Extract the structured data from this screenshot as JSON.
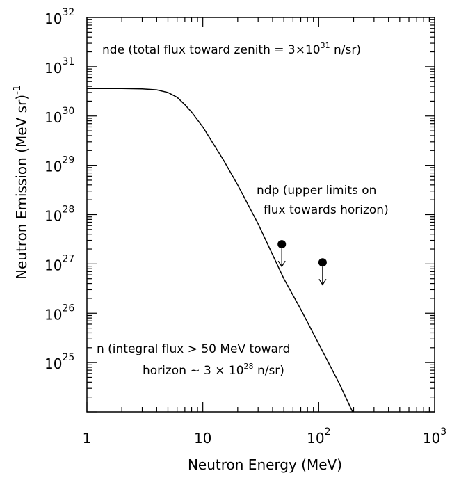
{
  "chart_data": {
    "type": "line",
    "x_scale": "log",
    "y_scale": "log",
    "xlim": [
      1,
      1000
    ],
    "ylim": [
      1e+24,
      1e+32
    ],
    "x_ticks": [
      {
        "value": 1,
        "label": "1"
      },
      {
        "value": 10,
        "label": "10"
      },
      {
        "value": 100,
        "base": "10",
        "exp": "2"
      },
      {
        "value": 1000,
        "base": "10",
        "exp": "3"
      }
    ],
    "y_ticks": [
      {
        "value": 1e+25,
        "base": "10",
        "exp": "25"
      },
      {
        "value": 1e+26,
        "base": "10",
        "exp": "26"
      },
      {
        "value": 1e+27,
        "base": "10",
        "exp": "27"
      },
      {
        "value": 1e+28,
        "base": "10",
        "exp": "28"
      },
      {
        "value": 1e+29,
        "base": "10",
        "exp": "29"
      },
      {
        "value": 1e+30,
        "base": "10",
        "exp": "30"
      },
      {
        "value": 1e+31,
        "base": "10",
        "exp": "31"
      },
      {
        "value": 1e+32,
        "base": "10",
        "exp": "32"
      }
    ],
    "xlabel": "Neutron Energy  (MeV)",
    "ylabel": "Neutron Emission  (MeV sr)",
    "ylabel_sup": "-1",
    "series": [
      {
        "x": [
          1,
          2,
          3,
          4,
          5,
          6,
          7,
          8,
          10,
          15,
          20,
          30,
          50,
          70,
          100,
          150,
          200,
          300
        ],
        "y": [
          3.6e+30,
          3.6e+30,
          3.55e+30,
          3.4e+30,
          3e+30,
          2.4e+30,
          1.7e+30,
          1.2e+30,
          6e+29,
          1.3e+29,
          4e+28,
          6.5e+27,
          5e+26,
          1.2e+26,
          2.4e+25,
          3.8e+24,
          9e+23,
          1e+23
        ]
      }
    ],
    "upper_limits": [
      {
        "x": 48,
        "y": 2.5e+27
      },
      {
        "x": 108,
        "y": 1.07e+27
      }
    ],
    "annotations": {
      "nde": {
        "text_before": "nde (total flux toward zenith = 3×10",
        "sup": "31",
        "text_after": " n/sr)"
      },
      "ndp_line1": "ndp (upper limits on",
      "ndp_line2": "flux towards horizon)",
      "n_line1": "n (integral flux > 50 MeV toward",
      "n_line2_before": "horizon  ~ 3 × 10",
      "n_line2_sup": "28",
      "n_line2_after": " n/sr)"
    },
    "grid": false,
    "legend": "none"
  }
}
